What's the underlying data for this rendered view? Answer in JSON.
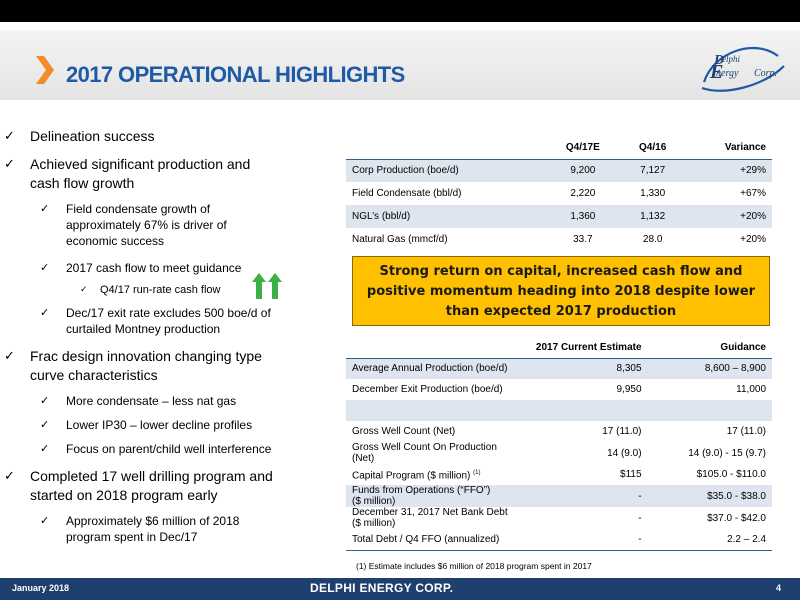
{
  "header": {
    "title": "2017 OPERATIONAL HIGHLIGHTS",
    "logo_text": "Delphi Energy Corp."
  },
  "bullets": [
    {
      "level": 1,
      "lines": [
        "Delineation success"
      ]
    },
    {
      "level": 1,
      "lines": [
        "Achieved significant production and",
        "cash flow growth"
      ]
    },
    {
      "level": 2,
      "lines": [
        "Field condensate growth of",
        "approximately 67% is driver of",
        "economic success"
      ]
    },
    {
      "level": 2,
      "lines": [
        "2017 cash flow to meet guidance"
      ]
    },
    {
      "level": 3,
      "lines": [
        "Q4/17 run-rate cash flow"
      ]
    },
    {
      "level": 2,
      "lines": [
        "Dec/17 exit rate excludes 500 boe/d of",
        "curtailed Montney production"
      ]
    },
    {
      "level": 1,
      "lines": [
        "Frac design innovation changing type",
        "curve characteristics"
      ]
    },
    {
      "level": 2,
      "lines": [
        "More condensate – less nat gas"
      ]
    },
    {
      "level": 2,
      "lines": [
        "Lower IP30 – lower decline profiles"
      ]
    },
    {
      "level": 2,
      "lines": [
        "Focus on parent/child well interference"
      ]
    },
    {
      "level": 1,
      "lines": [
        "Completed 17 well drilling program and",
        "started on 2018 program early"
      ]
    },
    {
      "level": 2,
      "lines": [
        "Approximately $6 million of 2018",
        "program spent in Dec/17"
      ]
    }
  ],
  "check_mark": "✓",
  "production_table": {
    "headers": [
      "",
      "Q4/17E",
      "Q4/16",
      "Variance"
    ],
    "rows": [
      [
        "Corp Production (boe/d)",
        "9,200",
        "7,127",
        "+29%"
      ],
      [
        "Field Condensate (bbl/d)",
        "2,220",
        "1,330",
        "+67%"
      ],
      [
        "NGL’s (bbl/d)",
        "1,360",
        "1,132",
        "+20%"
      ],
      [
        "Natural Gas (mmcf/d)",
        "33.7",
        "28.0",
        "+20%"
      ]
    ]
  },
  "callout": {
    "lines": [
      "Strong return on capital, increased cash flow and",
      "positive momentum heading into 2018 despite lower",
      "than expected 2017 production"
    ]
  },
  "guidance_table": {
    "headers": [
      "",
      "2017 Current Estimate",
      "Guidance"
    ],
    "rows": [
      {
        "label": [
          "Average Annual Production (boe/d)"
        ],
        "estimate": "8,305",
        "guidance": "8,600 – 8,900"
      },
      {
        "label": [
          "December Exit Production  (boe/d)"
        ],
        "estimate": "9,950",
        "guidance": "11,000"
      },
      {
        "label": [
          ""
        ],
        "estimate": "",
        "guidance": ""
      },
      {
        "label": [
          "Gross Well Count (Net)"
        ],
        "estimate": "17 (11.0)",
        "guidance": "17 (11.0)"
      },
      {
        "label": [
          "Gross Well Count On Production",
          "(Net)"
        ],
        "estimate": "14  (9.0)",
        "guidance": "14 (9.0) - 15 (9.7)"
      },
      {
        "label": [
          "Capital Program ($ million)"
        ],
        "sup": "(1)",
        "estimate": "$115",
        "guidance": "$105.0 - $110.0"
      },
      {
        "label": [
          "Funds from Operations (“FFO”)",
          "($ million)"
        ],
        "estimate": "-",
        "guidance": "$35.0 - $38.0"
      },
      {
        "label": [
          "December 31, 2017 Net Bank Debt",
          "($ million)"
        ],
        "estimate": "-",
        "guidance": "$37.0 - $42.0"
      },
      {
        "label": [
          "Total Debt / Q4 FFO (annualized)"
        ],
        "estimate": "-",
        "guidance": "2.2 – 2.4"
      }
    ]
  },
  "footnote": "(1) Estimate includes $6 million of 2018 program spent in 2017",
  "footer": {
    "date": "January 2018",
    "brand": "DELPHI ENERGY CORP.",
    "page": "4"
  },
  "colors": {
    "accent": "#1f5aa6",
    "chevron": "#f28c28",
    "callout": "#ffc000",
    "arrow": "#3cb043",
    "footer": "#1f3f6e",
    "row_alt": "#dfe5ef"
  }
}
